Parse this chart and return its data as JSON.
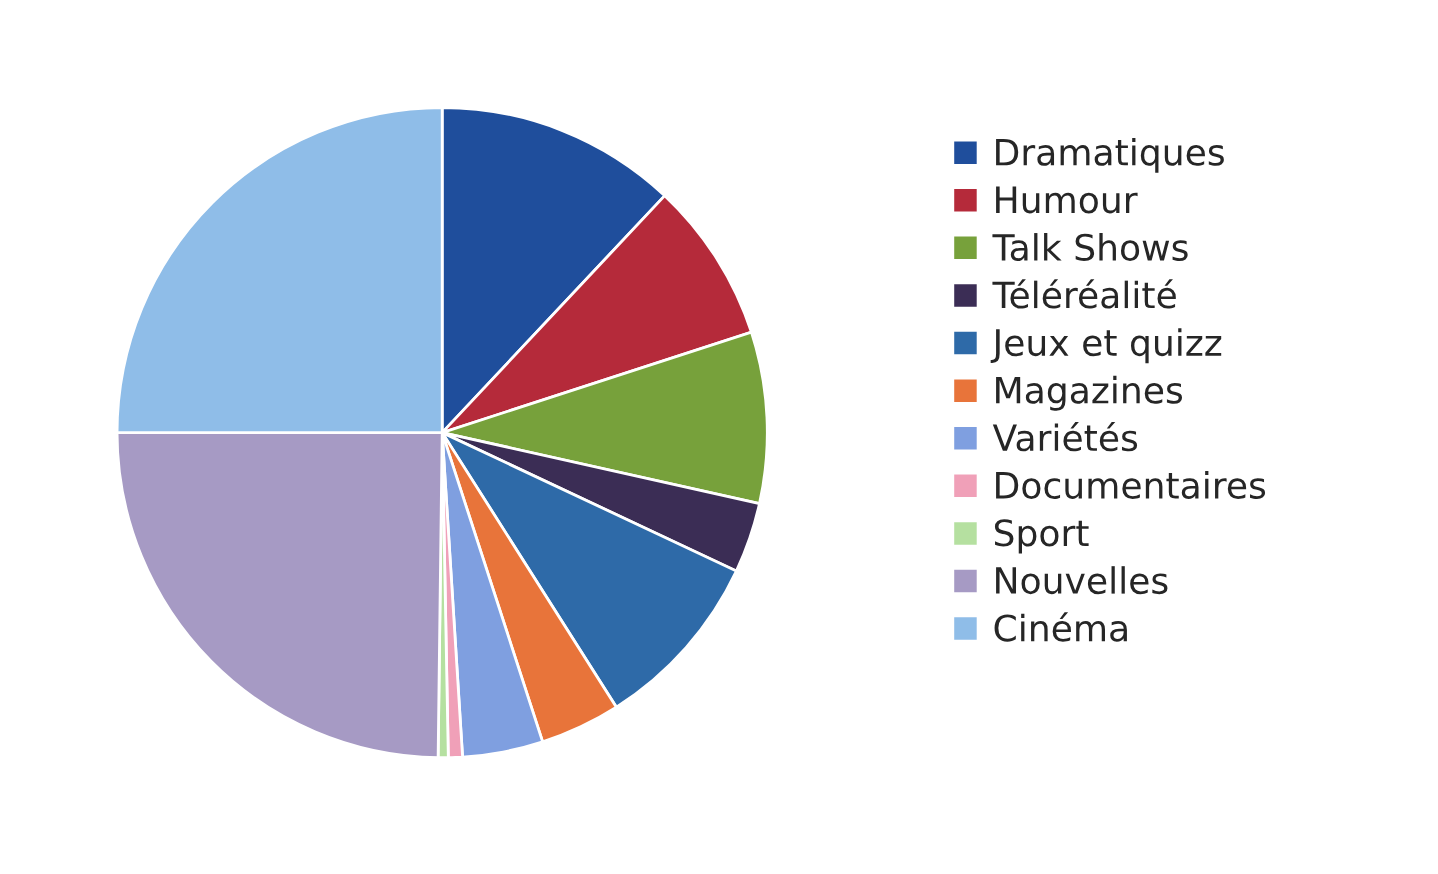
{
  "chart_data": {
    "type": "pie",
    "categories": [
      "Dramatiques",
      "Humour",
      "Talk Shows",
      "Téléréalité",
      "Jeux et quizz",
      "Magazines",
      "Variétés",
      "Documentaires",
      "Sport",
      "Nouvelles",
      "Cinéma"
    ],
    "values": [
      12,
      8,
      8.5,
      3.5,
      9,
      4,
      4,
      0.7,
      0.5,
      24.8,
      25
    ],
    "colors": [
      "#1f4e9c",
      "#b52a3a",
      "#77a13b",
      "#3b2d55",
      "#2e6aa8",
      "#e8743a",
      "#7f9fe0",
      "#f0a0b8",
      "#b5e0a0",
      "#a69ac4",
      "#8fbde8"
    ],
    "legend": "right"
  }
}
